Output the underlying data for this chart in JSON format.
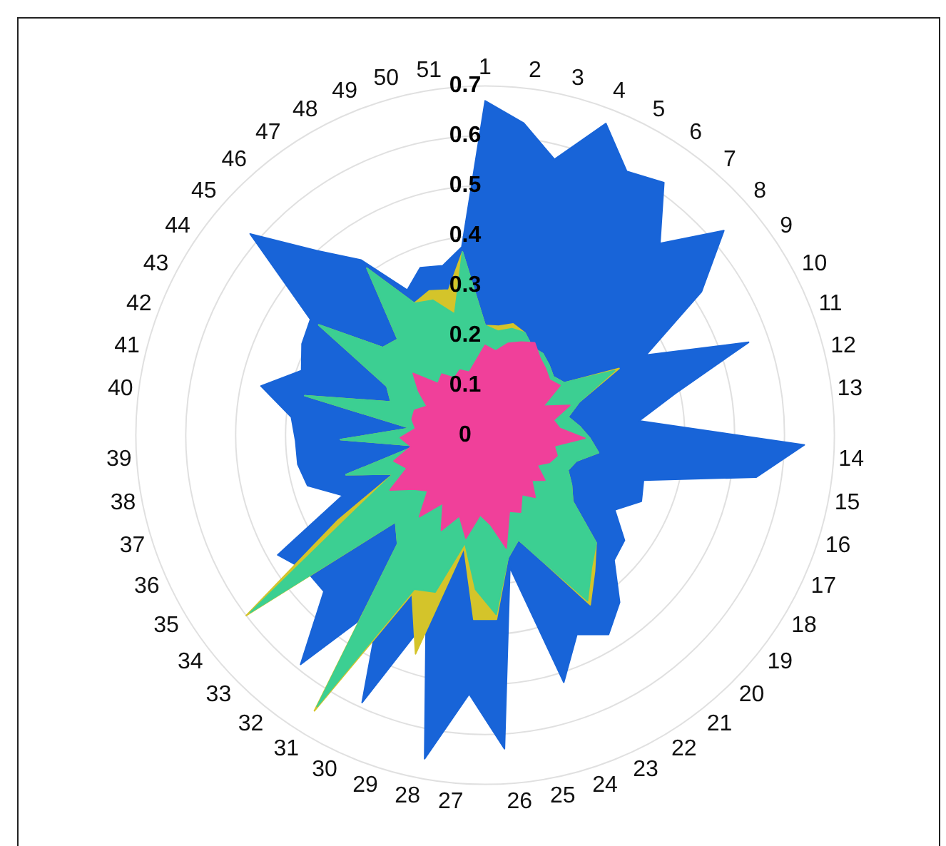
{
  "chart_data": {
    "type": "radar",
    "categories": [
      "1",
      "2",
      "3",
      "4",
      "5",
      "6",
      "7",
      "8",
      "9",
      "10",
      "11",
      "12",
      "13",
      "14",
      "15",
      "16",
      "17",
      "18",
      "19",
      "20",
      "21",
      "22",
      "23",
      "24",
      "25",
      "26",
      "27",
      "28",
      "29",
      "30",
      "31",
      "32",
      "33",
      "34",
      "35",
      "36",
      "37",
      "38",
      "39",
      "40",
      "41",
      "42",
      "43",
      "44",
      "45",
      "46",
      "47",
      "48",
      "49",
      "50",
      "51"
    ],
    "ylim": [
      0,
      0.7
    ],
    "yticks": [
      0,
      0.1,
      0.2,
      0.3,
      0.4,
      0.5,
      0.6,
      0.7
    ],
    "grid": true,
    "marker": "none",
    "series": [
      {
        "color": "#1864d8",
        "values": [
          0.67,
          0.63,
          0.57,
          0.67,
          0.6,
          0.62,
          0.52,
          0.63,
          0.52,
          0.36,
          0.56,
          0.39,
          0.31,
          0.64,
          0.55,
          0.33,
          0.34,
          0.3,
          0.35,
          0.36,
          0.43,
          0.47,
          0.44,
          0.52,
          0.27,
          0.63,
          0.52,
          0.66,
          0.39,
          0.59,
          0.4,
          0.59,
          0.45,
          0.45,
          0.48,
          0.31,
          0.37,
          0.38,
          0.38,
          0.39,
          0.46,
          0.39,
          0.41,
          0.42,
          0.62,
          0.5,
          0.43,
          0.33,
          0.36,
          0.35,
          0.38
        ]
      },
      {
        "color": "#d4c42a",
        "values": [
          0.22,
          0.22,
          0.23,
          0.22,
          0.2,
          0.2,
          0.19,
          0.18,
          0.19,
          0.3,
          0.2,
          0.17,
          0.19,
          0.21,
          0.23,
          0.19,
          0.18,
          0.2,
          0.22,
          0.31,
          0.35,
          0.4,
          0.28,
          0.22,
          0.25,
          0.37,
          0.37,
          0.23,
          0.46,
          0.35,
          0.65,
          0.28,
          0.25,
          0.6,
          0.34,
          0.2,
          0.29,
          0.14,
          0.29,
          0.15,
          0.37,
          0.2,
          0.22,
          0.4,
          0.27,
          0.26,
          0.41,
          0.3,
          0.31,
          0.3,
          0.37
        ]
      },
      {
        "color": "#3ccf92",
        "values": [
          0.22,
          0.21,
          0.22,
          0.22,
          0.2,
          0.2,
          0.19,
          0.18,
          0.19,
          0.29,
          0.2,
          0.17,
          0.19,
          0.21,
          0.23,
          0.19,
          0.18,
          0.2,
          0.22,
          0.31,
          0.34,
          0.39,
          0.28,
          0.22,
          0.25,
          0.36,
          0.31,
          0.22,
          0.33,
          0.34,
          0.64,
          0.28,
          0.25,
          0.59,
          0.3,
          0.2,
          0.29,
          0.14,
          0.29,
          0.15,
          0.37,
          0.2,
          0.22,
          0.4,
          0.27,
          0.26,
          0.41,
          0.3,
          0.29,
          0.25,
          0.37
        ]
      },
      {
        "color": "#f0409a",
        "values": [
          0.18,
          0.17,
          0.19,
          0.2,
          0.21,
          0.19,
          0.18,
          0.17,
          0.18,
          0.13,
          0.18,
          0.14,
          0.15,
          0.2,
          0.14,
          0.15,
          0.14,
          0.12,
          0.15,
          0.13,
          0.16,
          0.14,
          0.17,
          0.16,
          0.23,
          0.18,
          0.16,
          0.21,
          0.17,
          0.21,
          0.16,
          0.21,
          0.16,
          0.18,
          0.22,
          0.17,
          0.19,
          0.15,
          0.17,
          0.14,
          0.15,
          0.15,
          0.13,
          0.16,
          0.19,
          0.14,
          0.15,
          0.13,
          0.14,
          0.13,
          0.15
        ]
      }
    ]
  }
}
